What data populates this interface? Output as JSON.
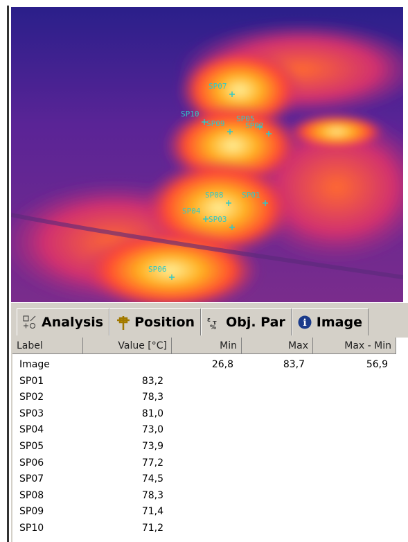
{
  "image_markers": [
    {
      "label": "SP07"
    },
    {
      "label": "SP10"
    },
    {
      "label": "SP09"
    },
    {
      "label": "SP05"
    },
    {
      "label": "SP02"
    },
    {
      "label": "SP08"
    },
    {
      "label": "SP01"
    },
    {
      "label": "SP04"
    },
    {
      "label": "SP03"
    },
    {
      "label": "SP06"
    }
  ],
  "tabs": [
    "Analysis",
    "Position",
    "Obj. Par",
    "Image"
  ],
  "table": {
    "columns": [
      "Label",
      "Value [°C]",
      "Min",
      "Max",
      "Max - Min"
    ],
    "rows": [
      {
        "label": "Image",
        "min": "26,8",
        "max": "83,7",
        "max_min": "56,9"
      },
      {
        "label": "SP01",
        "value": "83,2"
      },
      {
        "label": "SP02",
        "value": "78,3"
      },
      {
        "label": "SP03",
        "value": "81,0"
      },
      {
        "label": "SP04",
        "value": "73,0"
      },
      {
        "label": "SP05",
        "value": "73,9"
      },
      {
        "label": "SP06",
        "value": "77,2"
      },
      {
        "label": "SP07",
        "value": "74,5"
      },
      {
        "label": "SP08",
        "value": "78,3"
      },
      {
        "label": "SP09",
        "value": "71,4"
      },
      {
        "label": "SP10",
        "value": "71,2"
      }
    ]
  }
}
